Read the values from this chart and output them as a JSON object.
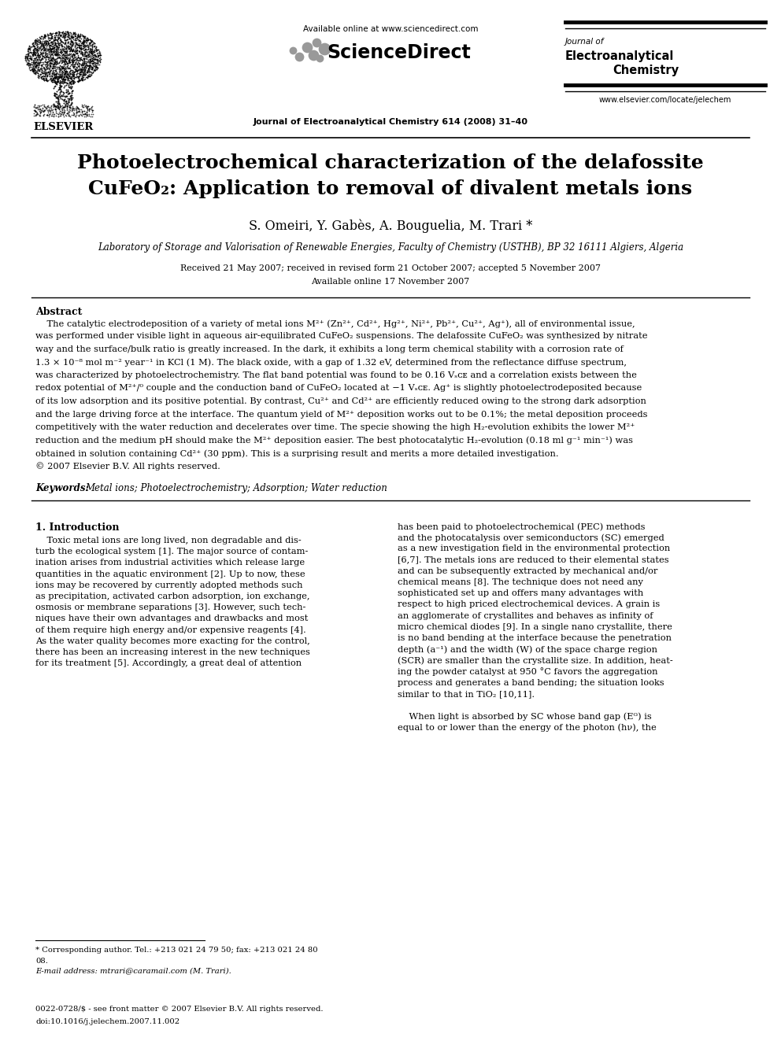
{
  "bg_color": "#ffffff",
  "page_width": 9.92,
  "page_height": 13.23,
  "header_available_online": "Available online at www.sciencedirect.com",
  "header_journal_line1": "Journal of",
  "header_journal_line2": "Electroanalytical",
  "header_journal_line3": "Chemistry",
  "header_journal_ref": "Journal of Electroanalytical Chemistry 614 (2008) 31–40",
  "header_website": "www.elsevier.com/locate/jelechem",
  "header_sciencedirect": "ScienceDirect",
  "title_line1": "Photoelectrochemical characterization of the delafossite",
  "title_line2": "CuFeO₂: Application to removal of divalent metals ions",
  "authors": "S. Omeiri, Y. Gabès, A. Bouguelia, M. Trari *",
  "affiliation": "Laboratory of Storage and Valorisation of Renewable Energies, Faculty of Chemistry (USTHB), BP 32 16111 Algiers, Algeria",
  "received": "Received 21 May 2007; received in revised form 21 October 2007; accepted 5 November 2007",
  "available": "Available online 17 November 2007",
  "abstract_title": "Abstract",
  "keywords_label": "Keywords:",
  "keywords_text": "Metal ions; Photoelectrochemistry; Adsorption; Water reduction",
  "section1_title": "1. Introduction",
  "footnote_star": "* Corresponding author. Tel.: +213 021 24 79 50; fax: +213 021 24 80",
  "footnote_star2": "08.",
  "footnote_email": "E-mail address: mtrari@caramail.com (M. Trari).",
  "footer_issn": "0022-0728/$ - see front matter © 2007 Elsevier B.V. All rights reserved.",
  "footer_doi": "doi:10.1016/j.jelechem.2007.11.002",
  "abstract_lines": [
    "    The catalytic electrodeposition of a variety of metal ions M²⁺ (Zn²⁺, Cd²⁺, Hg²⁺, Ni²⁺, Pb²⁺, Cu²⁺, Ag⁺), all of environmental issue,",
    "was performed under visible light in aqueous air-equilibrated CuFeO₂ suspensions. The delafossite CuFeO₂ was synthesized by nitrate",
    "way and the surface/bulk ratio is greatly increased. In the dark, it exhibits a long term chemical stability with a corrosion rate of",
    "1.3 × 10⁻⁸ mol m⁻² year⁻¹ in KCl (1 M). The black oxide, with a gap of 1.32 eV, determined from the reflectance diffuse spectrum,",
    "was characterized by photoelectrochemistry. The flat band potential was found to be 0.16 Vₛᴄᴇ and a correlation exists between the",
    "redox potential of M²⁺/⁰ couple and the conduction band of CuFeO₂ located at −1 Vₛᴄᴇ. Ag⁺ is slightly photoelectrodeposited because",
    "of its low adsorption and its positive potential. By contrast, Cu²⁺ and Cd²⁺ are efficiently reduced owing to the strong dark adsorption",
    "and the large driving force at the interface. The quantum yield of M²⁺ deposition works out to be 0.1%; the metal deposition proceeds",
    "competitively with the water reduction and decelerates over time. The specie showing the high H₂-evolution exhibits the lower M²⁺",
    "reduction and the medium pH should make the M²⁺ deposition easier. The best photocatalytic H₂-evolution (0.18 ml g⁻¹ min⁻¹) was",
    "obtained in solution containing Cd²⁺ (30 ppm). This is a surprising result and merits a more detailed investigation.",
    "© 2007 Elsevier B.V. All rights reserved."
  ],
  "left_col_lines": [
    "    Toxic metal ions are long lived, non degradable and dis-",
    "turb the ecological system [1]. The major source of contam-",
    "ination arises from industrial activities which release large",
    "quantities in the aquatic environment [2]. Up to now, these",
    "ions may be recovered by currently adopted methods such",
    "as precipitation, activated carbon adsorption, ion exchange,",
    "osmosis or membrane separations [3]. However, such tech-",
    "niques have their own advantages and drawbacks and most",
    "of them require high energy and/or expensive reagents [4].",
    "As the water quality becomes more exacting for the control,",
    "there has been an increasing interest in the new techniques",
    "for its treatment [5]. Accordingly, a great deal of attention"
  ],
  "right_col_lines": [
    "has been paid to photoelectrochemical (PEC) methods",
    "and the photocatalysis over semiconductors (SC) emerged",
    "as a new investigation field in the environmental protection",
    "[6,7]. The metals ions are reduced to their elemental states",
    "and can be subsequently extracted by mechanical and/or",
    "chemical means [8]. The technique does not need any",
    "sophisticated set up and offers many advantages with",
    "respect to high priced electrochemical devices. A grain is",
    "an agglomerate of crystallites and behaves as infinity of",
    "micro chemical diodes [9]. In a single nano crystallite, there",
    "is no band bending at the interface because the penetration",
    "depth (a⁻¹) and the width (W) of the space charge region",
    "(SCR) are smaller than the crystallite size. In addition, heat-",
    "ing the powder catalyst at 950 °C favors the aggregation",
    "process and generates a band bending; the situation looks",
    "similar to that in TiO₂ [10,11].",
    "",
    "    When light is absorbed by SC whose band gap (Eᴳ) is",
    "equal to or lower than the energy of the photon (hν), the"
  ]
}
